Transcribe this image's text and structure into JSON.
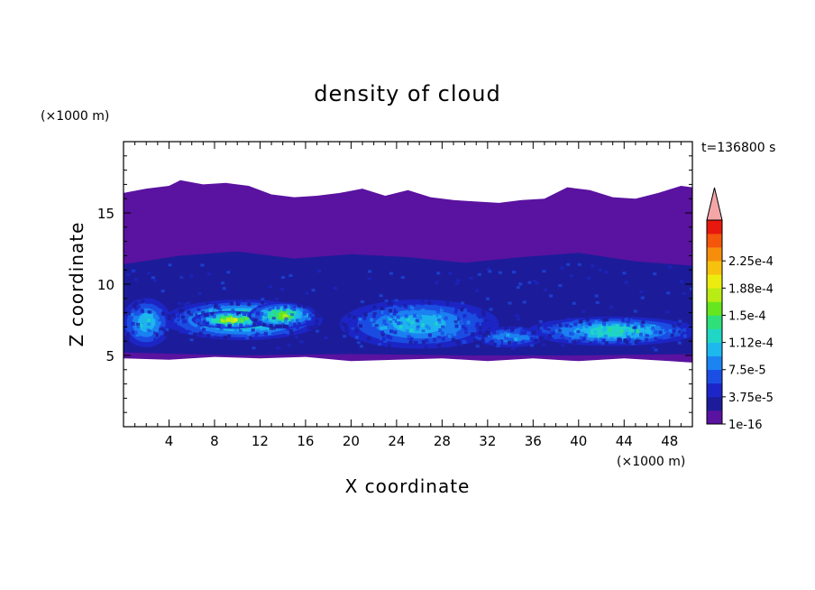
{
  "chart_data": {
    "type": "heatmap",
    "title": "density of cloud",
    "xlabel": "X coordinate",
    "ylabel": "Z coordinate",
    "x_unit": "(×1000 m)",
    "y_unit": "(×1000 m)",
    "time_label": "t=136800 s",
    "xlim": [
      0,
      50
    ],
    "ylim": [
      0,
      20
    ],
    "x_ticks": [
      4,
      8,
      12,
      16,
      20,
      24,
      28,
      32,
      36,
      40,
      44,
      48
    ],
    "y_ticks": [
      5,
      10,
      15
    ],
    "colorbar": {
      "extend": "max",
      "labels": [
        "1e-16",
        "3.75e-5",
        "7.5e-5",
        "1.12e-4",
        "1.5e-4",
        "1.88e-4",
        "2.25e-4"
      ],
      "colors": [
        "#5a12a0",
        "#1c1c9a",
        "#1c26c8",
        "#1b4fe4",
        "#1b84f2",
        "#1db8ee",
        "#20d6c4",
        "#2fe07a",
        "#66e61e",
        "#b8ec14",
        "#ecec10",
        "#f6c20e",
        "#f68e0c",
        "#f4560c",
        "#e8180e"
      ],
      "over_color": "#f4a6a6"
    },
    "cloud_layers": {
      "top_edge": [
        [
          0,
          16.4
        ],
        [
          2,
          16.7
        ],
        [
          4,
          16.9
        ],
        [
          5,
          17.3
        ],
        [
          7,
          17.0
        ],
        [
          9,
          17.1
        ],
        [
          11,
          16.9
        ],
        [
          13,
          16.3
        ],
        [
          15,
          16.1
        ],
        [
          17,
          16.2
        ],
        [
          19,
          16.4
        ],
        [
          21,
          16.7
        ],
        [
          23,
          16.2
        ],
        [
          25,
          16.6
        ],
        [
          27,
          16.1
        ],
        [
          29,
          15.9
        ],
        [
          31,
          15.8
        ],
        [
          33,
          15.7
        ],
        [
          35,
          15.9
        ],
        [
          37,
          16.0
        ],
        [
          39,
          16.8
        ],
        [
          41,
          16.6
        ],
        [
          43,
          16.1
        ],
        [
          45,
          16.0
        ],
        [
          47,
          16.4
        ],
        [
          49,
          16.9
        ],
        [
          50,
          16.8
        ]
      ],
      "bottom_edge": [
        [
          0,
          4.8
        ],
        [
          4,
          4.7
        ],
        [
          8,
          4.9
        ],
        [
          12,
          4.8
        ],
        [
          16,
          4.9
        ],
        [
          20,
          4.6
        ],
        [
          24,
          4.7
        ],
        [
          28,
          4.8
        ],
        [
          32,
          4.6
        ],
        [
          36,
          4.8
        ],
        [
          40,
          4.6
        ],
        [
          44,
          4.8
        ],
        [
          48,
          4.6
        ],
        [
          50,
          4.5
        ]
      ],
      "dense_band_top": [
        [
          0,
          11.4
        ],
        [
          5,
          12.0
        ],
        [
          10,
          12.3
        ],
        [
          15,
          11.8
        ],
        [
          20,
          12.1
        ],
        [
          25,
          11.9
        ],
        [
          30,
          11.5
        ],
        [
          35,
          11.9
        ],
        [
          40,
          12.2
        ],
        [
          45,
          11.6
        ],
        [
          50,
          11.3
        ]
      ],
      "dense_band_bottom": [
        [
          0,
          5.2
        ],
        [
          10,
          5.0
        ],
        [
          20,
          5.1
        ],
        [
          30,
          5.0
        ],
        [
          40,
          5.0
        ],
        [
          50,
          5.1
        ]
      ],
      "cores": [
        {
          "x": 10.5,
          "z": 7.5,
          "rx": 7.0,
          "rz": 1.3,
          "level": 7
        },
        {
          "x": 9.5,
          "z": 7.5,
          "rx": 3.5,
          "rz": 0.5,
          "level": 9
        },
        {
          "x": 14.0,
          "z": 7.8,
          "rx": 3.0,
          "rz": 0.8,
          "level": 8
        },
        {
          "x": 26.0,
          "z": 7.2,
          "rx": 7.0,
          "rz": 1.6,
          "level": 5
        },
        {
          "x": 43.0,
          "z": 6.7,
          "rx": 7.5,
          "rz": 0.9,
          "level": 6
        },
        {
          "x": 2.0,
          "z": 7.3,
          "rx": 2.2,
          "rz": 1.6,
          "level": 5
        },
        {
          "x": 34.0,
          "z": 6.3,
          "rx": 3.0,
          "rz": 0.6,
          "level": 4
        }
      ]
    }
  }
}
